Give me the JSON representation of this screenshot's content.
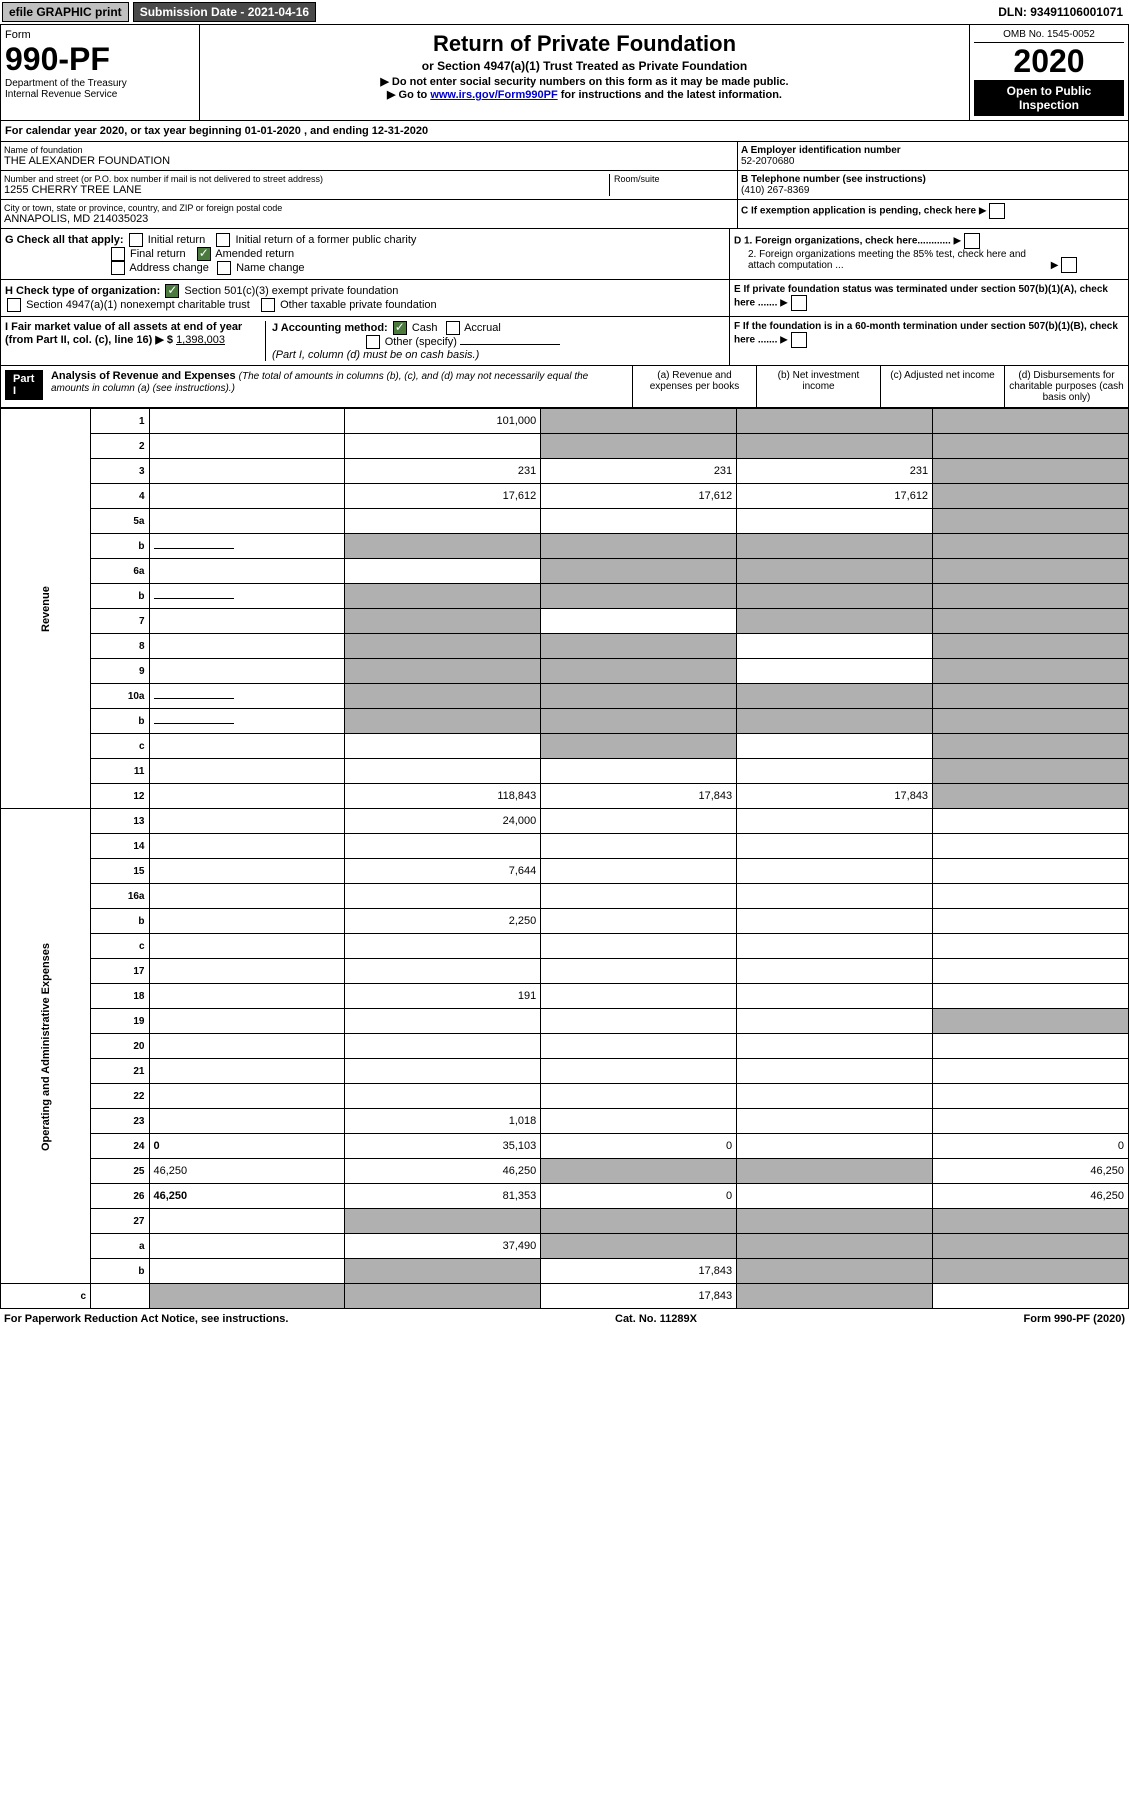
{
  "top": {
    "efile": "efile GRAPHIC print",
    "submission": "Submission Date - 2021-04-16",
    "dln": "DLN: 93491106001071"
  },
  "header": {
    "form_word": "Form",
    "form_num": "990-PF",
    "dept": "Department of the Treasury\nInternal Revenue Service",
    "title": "Return of Private Foundation",
    "subtitle": "or Section 4947(a)(1) Trust Treated as Private Foundation",
    "note1": "▶ Do not enter social security numbers on this form as it may be made public.",
    "note2_pre": "▶ Go to ",
    "note2_link": "www.irs.gov/Form990PF",
    "note2_post": " for instructions and the latest information.",
    "omb": "OMB No. 1545-0052",
    "year": "2020",
    "inspect": "Open to Public Inspection"
  },
  "calyear": "For calendar year 2020, or tax year beginning 01-01-2020            , and ending 12-31-2020",
  "org": {
    "name_label": "Name of foundation",
    "name": "THE ALEXANDER FOUNDATION",
    "addr_label": "Number and street (or P.O. box number if mail is not delivered to street address)",
    "addr": "1255 CHERRY TREE LANE",
    "room_label": "Room/suite",
    "city_label": "City or town, state or province, country, and ZIP or foreign postal code",
    "city": "ANNAPOLIS, MD  214035023",
    "ein_label": "A Employer identification number",
    "ein": "52-2070680",
    "tel_label": "B Telephone number (see instructions)",
    "tel": "(410) 267-8369",
    "c_label": "C  If exemption application is pending, check here",
    "d1": "D 1. Foreign organizations, check here............",
    "d2": "2. Foreign organizations meeting the 85% test, check here and attach computation ...",
    "e": "E  If private foundation status was terminated under section 507(b)(1)(A), check here .......",
    "f": "F  If the foundation is in a 60-month termination under section 507(b)(1)(B), check here .......",
    "g_label": "G Check all that apply:",
    "g_initial": "Initial return",
    "g_initial_former": "Initial return of a former public charity",
    "g_final": "Final return",
    "g_amended": "Amended return",
    "g_address": "Address change",
    "g_name": "Name change",
    "h_label": "H Check type of organization:",
    "h_501c3": "Section 501(c)(3) exempt private foundation",
    "h_4947": "Section 4947(a)(1) nonexempt charitable trust",
    "h_other": "Other taxable private foundation",
    "i_label": "I Fair market value of all assets at end of year (from Part II, col. (c), line 16)  ▶ $",
    "i_val": "1,398,003",
    "j_label": "J Accounting method:",
    "j_cash": "Cash",
    "j_accrual": "Accrual",
    "j_other": "Other (specify)",
    "j_note": "(Part I, column (d) must be on cash basis.)"
  },
  "part1": {
    "label": "Part I",
    "title": "Analysis of Revenue and Expenses",
    "title_note": "(The total of amounts in columns (b), (c), and (d) may not necessarily equal the amounts in column (a) (see instructions).)",
    "col_a": "(a)  Revenue and expenses per books",
    "col_b": "(b)  Net investment income",
    "col_c": "(c)  Adjusted net income",
    "col_d": "(d)  Disbursements for charitable purposes (cash basis only)",
    "side_rev": "Revenue",
    "side_exp": "Operating and Administrative Expenses"
  },
  "rows": [
    {
      "n": "1",
      "d": "",
      "a": "101,000",
      "b": "",
      "c": "",
      "sb": 1,
      "sc": 1,
      "sd": 1
    },
    {
      "n": "2",
      "d": "",
      "a": "",
      "b": "",
      "c": "",
      "sb": 1,
      "sc": 1,
      "sd": 1,
      "noamt": 1
    },
    {
      "n": "3",
      "d": "",
      "a": "231",
      "b": "231",
      "c": "231",
      "sd": 1
    },
    {
      "n": "4",
      "d": "",
      "a": "17,612",
      "b": "17,612",
      "c": "17,612",
      "sd": 1
    },
    {
      "n": "5a",
      "d": "",
      "a": "",
      "b": "",
      "c": "",
      "sd": 1
    },
    {
      "n": "b",
      "d": "",
      "a": "",
      "b": "",
      "c": "",
      "sa": 1,
      "sb": 1,
      "sc": 1,
      "sd": 1,
      "inline": 1
    },
    {
      "n": "6a",
      "d": "",
      "a": "",
      "b": "",
      "c": "",
      "sb": 1,
      "sc": 1,
      "sd": 1
    },
    {
      "n": "b",
      "d": "",
      "a": "",
      "b": "",
      "c": "",
      "sa": 1,
      "sb": 1,
      "sc": 1,
      "sd": 1,
      "inline": 1
    },
    {
      "n": "7",
      "d": "",
      "a": "",
      "b": "",
      "c": "",
      "sa": 1,
      "sc": 1,
      "sd": 1
    },
    {
      "n": "8",
      "d": "",
      "a": "",
      "b": "",
      "c": "",
      "sa": 1,
      "sb": 1,
      "sd": 1
    },
    {
      "n": "9",
      "d": "",
      "a": "",
      "b": "",
      "c": "",
      "sa": 1,
      "sb": 1,
      "sd": 1
    },
    {
      "n": "10a",
      "d": "",
      "a": "",
      "b": "",
      "c": "",
      "sa": 1,
      "sb": 1,
      "sc": 1,
      "sd": 1,
      "inline": 1
    },
    {
      "n": "b",
      "d": "",
      "a": "",
      "b": "",
      "c": "",
      "sa": 1,
      "sb": 1,
      "sc": 1,
      "sd": 1,
      "inline": 1
    },
    {
      "n": "c",
      "d": "",
      "a": "",
      "b": "",
      "c": "",
      "sb": 1,
      "sd": 1
    },
    {
      "n": "11",
      "d": "",
      "a": "",
      "b": "",
      "c": "",
      "sd": 1
    },
    {
      "n": "12",
      "d": "",
      "a": "118,843",
      "b": "17,843",
      "c": "17,843",
      "sd": 1,
      "bold": 1
    },
    {
      "n": "13",
      "d": "",
      "a": "24,000",
      "b": "",
      "c": ""
    },
    {
      "n": "14",
      "d": "",
      "a": "",
      "b": "",
      "c": ""
    },
    {
      "n": "15",
      "d": "",
      "a": "7,644",
      "b": "",
      "c": ""
    },
    {
      "n": "16a",
      "d": "",
      "a": "",
      "b": "",
      "c": ""
    },
    {
      "n": "b",
      "d": "",
      "a": "2,250",
      "b": "",
      "c": ""
    },
    {
      "n": "c",
      "d": "",
      "a": "",
      "b": "",
      "c": ""
    },
    {
      "n": "17",
      "d": "",
      "a": "",
      "b": "",
      "c": ""
    },
    {
      "n": "18",
      "d": "",
      "a": "191",
      "b": "",
      "c": ""
    },
    {
      "n": "19",
      "d": "",
      "a": "",
      "b": "",
      "c": "",
      "sd": 1
    },
    {
      "n": "20",
      "d": "",
      "a": "",
      "b": "",
      "c": ""
    },
    {
      "n": "21",
      "d": "",
      "a": "",
      "b": "",
      "c": ""
    },
    {
      "n": "22",
      "d": "",
      "a": "",
      "b": "",
      "c": ""
    },
    {
      "n": "23",
      "d": "",
      "a": "1,018",
      "b": "",
      "c": ""
    },
    {
      "n": "24",
      "d": "0",
      "a": "35,103",
      "b": "0",
      "c": "",
      "bold": 1
    },
    {
      "n": "25",
      "d": "46,250",
      "a": "46,250",
      "b": "",
      "c": "",
      "sb": 1,
      "sc": 1
    },
    {
      "n": "26",
      "d": "46,250",
      "a": "81,353",
      "b": "0",
      "c": "",
      "bold": 1
    },
    {
      "n": "27",
      "d": "",
      "a": "",
      "b": "",
      "c": "",
      "sa": 1,
      "sb": 1,
      "sc": 1,
      "sd": 1
    },
    {
      "n": "a",
      "d": "",
      "a": "37,490",
      "b": "",
      "c": "",
      "sb": 1,
      "sc": 1,
      "sd": 1,
      "bold": 1
    },
    {
      "n": "b",
      "d": "",
      "a": "",
      "b": "17,843",
      "c": "",
      "sa": 1,
      "sc": 1,
      "sd": 1,
      "bold": 1
    },
    {
      "n": "c",
      "d": "",
      "a": "",
      "b": "",
      "c": "17,843",
      "sa": 1,
      "sb": 1,
      "sd": 1,
      "bold": 1
    }
  ],
  "footer": {
    "left": "For Paperwork Reduction Act Notice, see instructions.",
    "mid": "Cat. No. 11289X",
    "right": "Form 990-PF (2020)"
  }
}
